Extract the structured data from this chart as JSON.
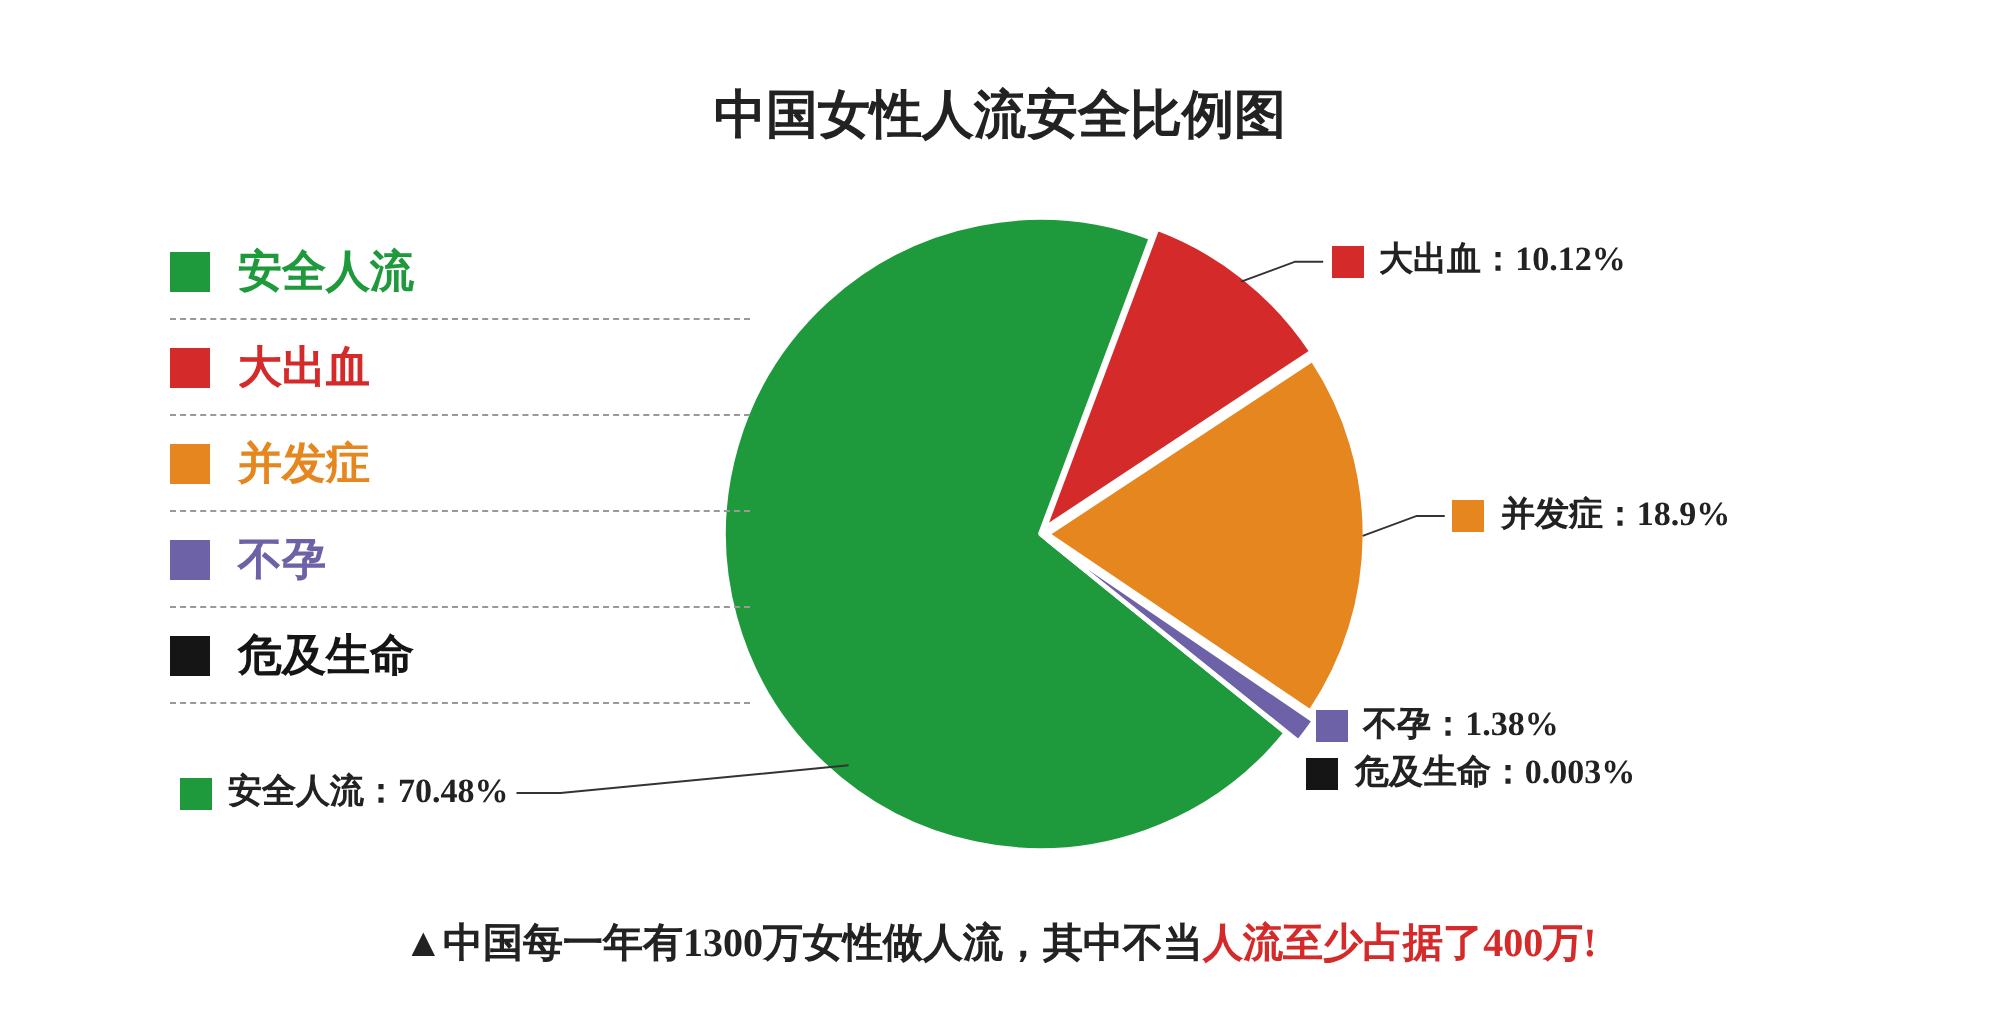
{
  "chart_data": {
    "type": "pie",
    "title": "中国女性人流安全比例图",
    "categories": [
      "安全人流",
      "大出血",
      "并发症",
      "不孕",
      "危及生命"
    ],
    "values": [
      70.48,
      10.12,
      18.9,
      1.38,
      0.003
    ],
    "colors": [
      "#1e9a3c",
      "#d42a2a",
      "#e5861e",
      "#6d62a8",
      "#151515"
    ],
    "value_labels": [
      "安全人流：70.48%",
      "大出血：10.12%",
      "并发症：18.9%",
      "不孕：1.38%",
      "危及生命：0.003%"
    ],
    "legend": "left",
    "annotations": [
      "▲中国每一年有1300万女性做人流，其中不当",
      "人流至少占据了400万!"
    ]
  }
}
